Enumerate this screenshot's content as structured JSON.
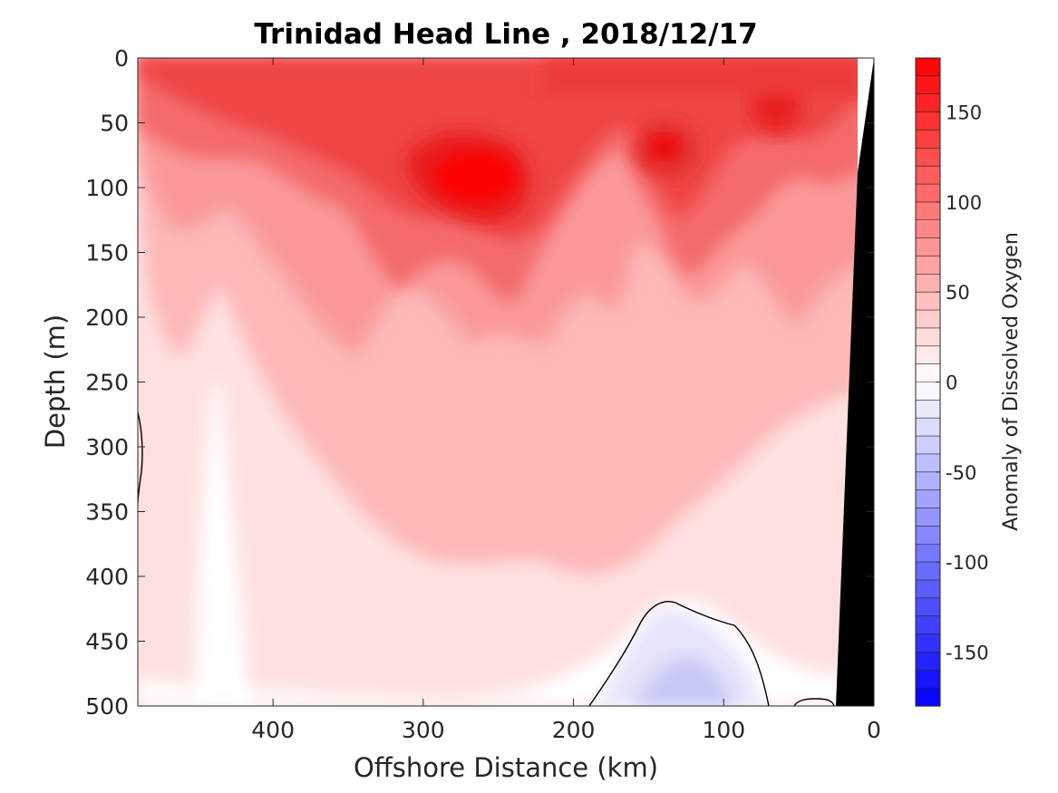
{
  "chart_data": {
    "type": "heatmap",
    "title": "Trinidad Head Line , 2018/12/17",
    "xlabel": "Offshore Distance (km)",
    "ylabel": "Depth (m)",
    "xlim": [
      490,
      0
    ],
    "ylim": [
      0,
      500
    ],
    "x_ticks": [
      400,
      300,
      200,
      100,
      0
    ],
    "y_ticks": [
      0,
      50,
      100,
      150,
      200,
      250,
      300,
      350,
      400,
      450,
      500
    ],
    "colorbar": {
      "label": "Anomaly of Dissolved Oxygen",
      "range": [
        -180,
        180
      ],
      "ticks": [
        150,
        100,
        50,
        0,
        -50,
        -100,
        -150
      ],
      "colormap": "blue-white-red",
      "low_color": "#0000ff",
      "zero_color": "#ffffff",
      "high_color": "#ff0000"
    },
    "grid": false,
    "features": [
      {
        "name": "max core near 260 km, 90 m",
        "x": 260,
        "depth": 90,
        "value": 175
      },
      {
        "name": "core near 140 km, 75 m",
        "x": 140,
        "depth": 75,
        "value": 150
      },
      {
        "name": "core near 60 km, 35 m",
        "x": 60,
        "depth": 35,
        "value": 150
      },
      {
        "name": "negative anomaly near 130 km, 480 m",
        "x": 130,
        "depth": 480,
        "value": -45
      }
    ],
    "bathymetry_color": "#000000",
    "zero_contour": true
  }
}
